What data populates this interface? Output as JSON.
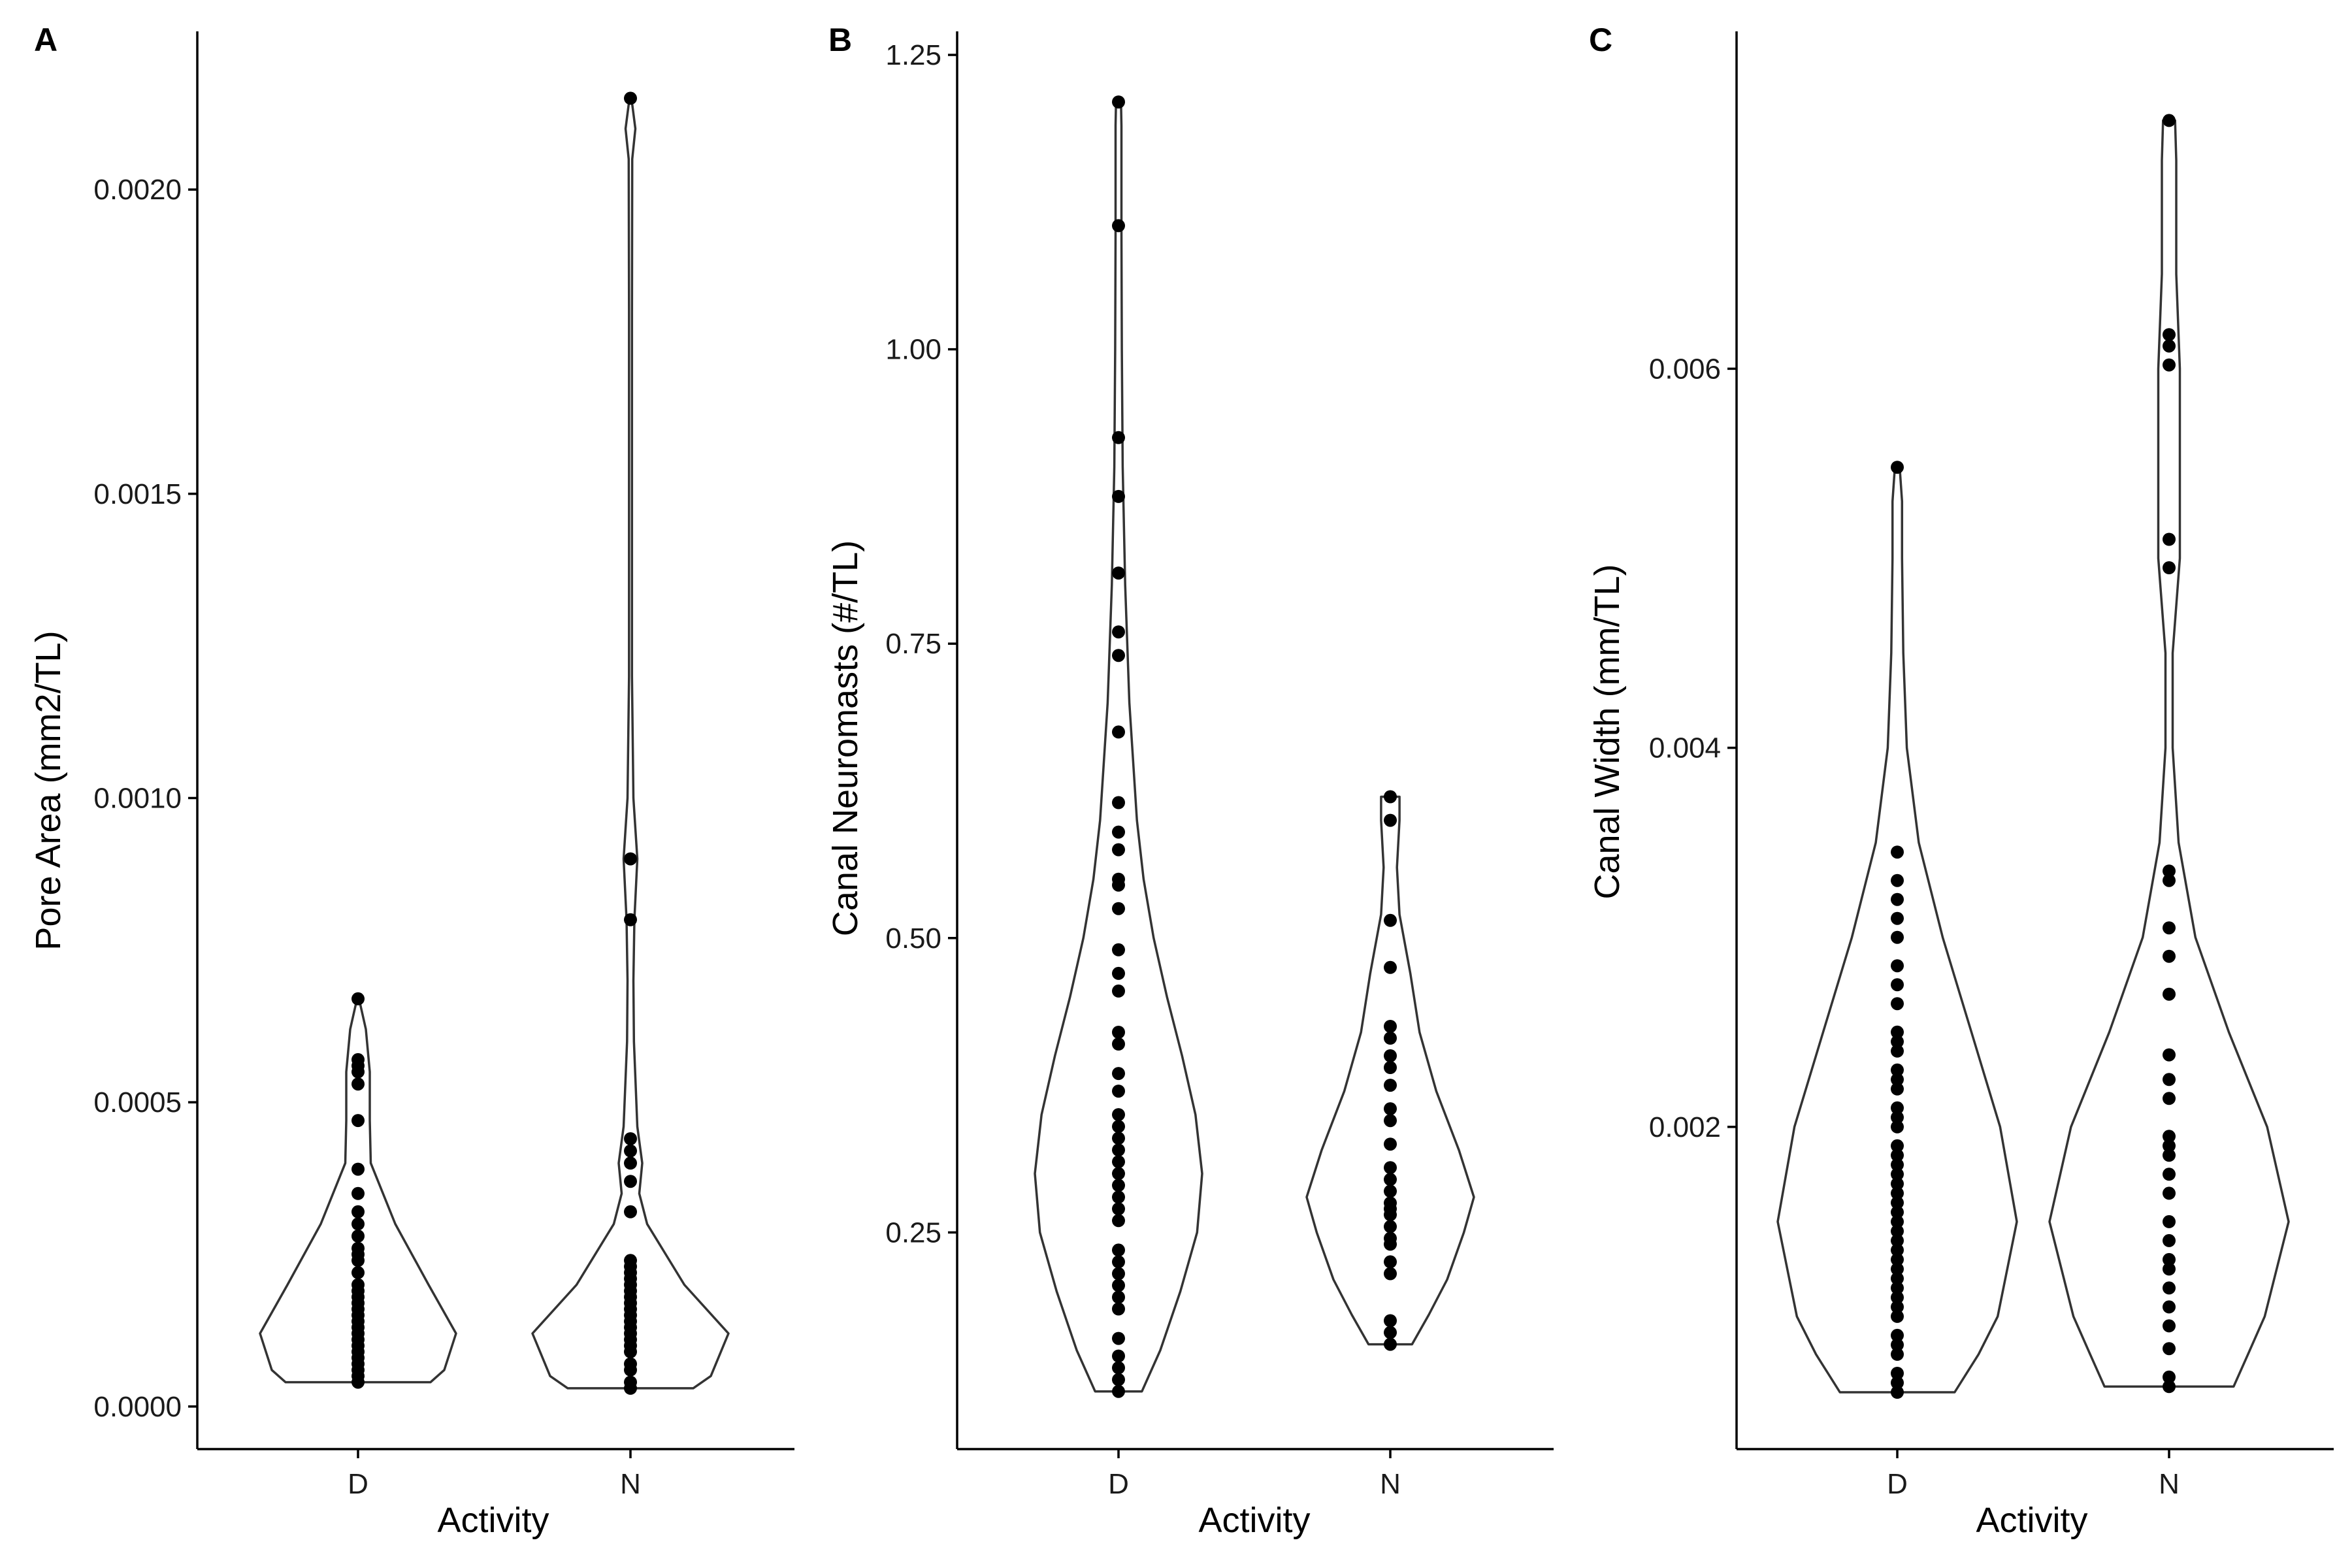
{
  "chart_data": [
    {
      "type": "violin",
      "panel": "A",
      "xlabel": "Activity",
      "ylabel": "Pore Area (mm2/TL)",
      "categories": [
        "D",
        "N"
      ],
      "ylim": [
        -7e-05,
        0.00226
      ],
      "yticks": [
        0.0,
        0.0005,
        0.001,
        0.0015,
        0.002
      ],
      "ytick_labels": [
        "0.0000",
        "0.0005",
        "0.0010",
        "0.0015",
        "0.0020"
      ],
      "violins": [
        {
          "category": "D",
          "min": 4e-05,
          "max": 0.00067,
          "peak": 0.00012,
          "profile": [
            [
              4e-05,
              0.74
            ],
            [
              6e-05,
              0.88
            ],
            [
              0.00012,
              1.0
            ],
            [
              0.0002,
              0.72
            ],
            [
              0.0003,
              0.38
            ],
            [
              0.0004,
              0.13
            ],
            [
              0.00047,
              0.12
            ],
            [
              0.00055,
              0.12
            ],
            [
              0.00062,
              0.08
            ],
            [
              0.00067,
              0.01
            ]
          ]
        },
        {
          "category": "N",
          "min": 3e-05,
          "max": 0.00215,
          "peak": 0.00012,
          "profile": [
            [
              3e-05,
              0.64
            ],
            [
              5e-05,
              0.82
            ],
            [
              0.00012,
              1.0
            ],
            [
              0.0002,
              0.55
            ],
            [
              0.0003,
              0.17
            ],
            [
              0.00035,
              0.09
            ],
            [
              0.0004,
              0.12
            ],
            [
              0.00046,
              0.07
            ],
            [
              0.0006,
              0.035
            ],
            [
              0.0007,
              0.03
            ],
            [
              0.0008,
              0.04
            ],
            [
              0.0009,
              0.07
            ],
            [
              0.001,
              0.03
            ],
            [
              0.0012,
              0.015
            ],
            [
              0.0018,
              0.015
            ],
            [
              0.00205,
              0.018
            ],
            [
              0.0021,
              0.05
            ],
            [
              0.00215,
              0.01
            ]
          ]
        }
      ],
      "points": [
        {
          "category": "D",
          "values": [
            4e-05,
            5e-05,
            6e-05,
            7e-05,
            8e-05,
            9e-05,
            0.0001,
            0.00011,
            0.00012,
            0.00013,
            0.00014,
            0.00015,
            0.00016,
            0.00017,
            0.00018,
            0.00019,
            0.0002,
            0.00022,
            0.00024,
            0.00025,
            0.00026,
            0.00028,
            0.0003,
            0.00032,
            0.00035,
            0.00039,
            0.00047,
            0.00053,
            0.00055,
            0.00056,
            0.00057,
            0.00067
          ]
        },
        {
          "category": "N",
          "values": [
            3e-05,
            4e-05,
            6e-05,
            7e-05,
            9e-05,
            0.0001,
            0.00011,
            0.00012,
            0.00013,
            0.00014,
            0.00015,
            0.00016,
            0.00017,
            0.00018,
            0.00019,
            0.0002,
            0.00021,
            0.00022,
            0.00023,
            0.00024,
            0.00032,
            0.00037,
            0.0004,
            0.00042,
            0.00044,
            0.0008,
            0.0009,
            0.00215
          ]
        }
      ]
    },
    {
      "type": "violin",
      "panel": "B",
      "xlabel": "Activity",
      "ylabel": "Canal Neuromasts (#/TL)",
      "categories": [
        "D",
        "N"
      ],
      "ylim": [
        0.066,
        1.27
      ],
      "yticks": [
        0.25,
        0.5,
        0.75,
        1.0,
        1.25
      ],
      "ytick_labels": [
        "0.25",
        "0.50",
        "0.75",
        "1.00",
        "1.25"
      ],
      "violins": [
        {
          "category": "D",
          "min": 0.115,
          "max": 1.21,
          "peak": 0.3,
          "profile": [
            [
              0.115,
              0.28
            ],
            [
              0.15,
              0.5
            ],
            [
              0.2,
              0.74
            ],
            [
              0.25,
              0.94
            ],
            [
              0.3,
              1.0
            ],
            [
              0.35,
              0.92
            ],
            [
              0.4,
              0.76
            ],
            [
              0.45,
              0.58
            ],
            [
              0.5,
              0.42
            ],
            [
              0.55,
              0.3
            ],
            [
              0.6,
              0.22
            ],
            [
              0.7,
              0.13
            ],
            [
              0.8,
              0.08
            ],
            [
              0.9,
              0.05
            ],
            [
              1.0,
              0.04
            ],
            [
              1.1,
              0.035
            ],
            [
              1.19,
              0.035
            ],
            [
              1.21,
              0.03
            ]
          ]
        },
        {
          "category": "N",
          "min": 0.155,
          "max": 0.62,
          "peak": 0.28,
          "profile": [
            [
              0.155,
              0.26
            ],
            [
              0.18,
              0.46
            ],
            [
              0.21,
              0.68
            ],
            [
              0.25,
              0.88
            ],
            [
              0.28,
              1.0
            ],
            [
              0.32,
              0.82
            ],
            [
              0.37,
              0.55
            ],
            [
              0.42,
              0.35
            ],
            [
              0.47,
              0.24
            ],
            [
              0.52,
              0.11
            ],
            [
              0.56,
              0.08
            ],
            [
              0.6,
              0.11
            ],
            [
              0.62,
              0.11
            ]
          ]
        }
      ],
      "points": [
        {
          "category": "D",
          "values": [
            0.115,
            0.125,
            0.135,
            0.145,
            0.16,
            0.185,
            0.195,
            0.205,
            0.215,
            0.225,
            0.235,
            0.26,
            0.27,
            0.28,
            0.29,
            0.3,
            0.31,
            0.32,
            0.33,
            0.34,
            0.35,
            0.37,
            0.385,
            0.41,
            0.42,
            0.455,
            0.47,
            0.49,
            0.525,
            0.545,
            0.55,
            0.575,
            0.59,
            0.615,
            0.675,
            0.74,
            0.76,
            0.81,
            0.875,
            0.925,
            1.105,
            1.21
          ]
        },
        {
          "category": "N",
          "values": [
            0.155,
            0.165,
            0.175,
            0.215,
            0.225,
            0.24,
            0.245,
            0.255,
            0.265,
            0.27,
            0.275,
            0.285,
            0.295,
            0.305,
            0.325,
            0.345,
            0.355,
            0.375,
            0.39,
            0.4,
            0.415,
            0.425,
            0.475,
            0.515,
            0.6,
            0.62
          ]
        }
      ]
    },
    {
      "type": "violin",
      "panel": "C",
      "xlabel": "Activity",
      "ylabel": "Canal Width (mm/TL)",
      "categories": [
        "D",
        "N"
      ],
      "ylim": [
        0.0003,
        0.00778
      ],
      "yticks": [
        0.002,
        0.004,
        0.006
      ],
      "ytick_labels": [
        "0.002",
        "0.004",
        "0.006"
      ],
      "violins": [
        {
          "category": "D",
          "min": 0.0006,
          "max": 0.00548,
          "peak": 0.0015,
          "profile": [
            [
              0.0006,
              0.48
            ],
            [
              0.0008,
              0.68
            ],
            [
              0.001,
              0.84
            ],
            [
              0.0015,
              1.0
            ],
            [
              0.002,
              0.86
            ],
            [
              0.0025,
              0.62
            ],
            [
              0.003,
              0.38
            ],
            [
              0.0035,
              0.18
            ],
            [
              0.004,
              0.08
            ],
            [
              0.0045,
              0.05
            ],
            [
              0.005,
              0.04
            ],
            [
              0.0053,
              0.04
            ],
            [
              0.00548,
              0.02
            ]
          ]
        },
        {
          "category": "N",
          "min": 0.00063,
          "max": 0.00731,
          "peak": 0.0015,
          "profile": [
            [
              0.00063,
              0.54
            ],
            [
              0.0008,
              0.66
            ],
            [
              0.001,
              0.8
            ],
            [
              0.0015,
              1.0
            ],
            [
              0.002,
              0.82
            ],
            [
              0.0025,
              0.5
            ],
            [
              0.003,
              0.22
            ],
            [
              0.0035,
              0.08
            ],
            [
              0.004,
              0.03
            ],
            [
              0.0045,
              0.03
            ],
            [
              0.005,
              0.09
            ],
            [
              0.0055,
              0.09
            ],
            [
              0.006,
              0.09
            ],
            [
              0.0065,
              0.06
            ],
            [
              0.0071,
              0.06
            ],
            [
              0.00731,
              0.05
            ]
          ]
        }
      ],
      "points": [
        {
          "category": "D",
          "values": [
            0.0006,
            0.00065,
            0.0007,
            0.0008,
            0.00085,
            0.0009,
            0.001,
            0.00105,
            0.0011,
            0.00115,
            0.0012,
            0.00125,
            0.0013,
            0.00135,
            0.0014,
            0.00145,
            0.0015,
            0.00155,
            0.0016,
            0.00165,
            0.0017,
            0.00175,
            0.0018,
            0.00185,
            0.0019,
            0.002,
            0.00205,
            0.0021,
            0.0022,
            0.00225,
            0.0023,
            0.0024,
            0.00245,
            0.0025,
            0.00265,
            0.00275,
            0.00285,
            0.003,
            0.0031,
            0.0032,
            0.0033,
            0.00345,
            0.00548
          ]
        },
        {
          "category": "N",
          "values": [
            0.00063,
            0.00068,
            0.00083,
            0.00095,
            0.00105,
            0.00115,
            0.00125,
            0.0013,
            0.0014,
            0.0015,
            0.00165,
            0.00175,
            0.00185,
            0.0019,
            0.00195,
            0.00215,
            0.00225,
            0.00238,
            0.0027,
            0.0029,
            0.00305,
            0.0033,
            0.00335,
            0.00495,
            0.0051,
            0.00602,
            0.00612,
            0.00618,
            0.00731
          ]
        }
      ]
    }
  ]
}
